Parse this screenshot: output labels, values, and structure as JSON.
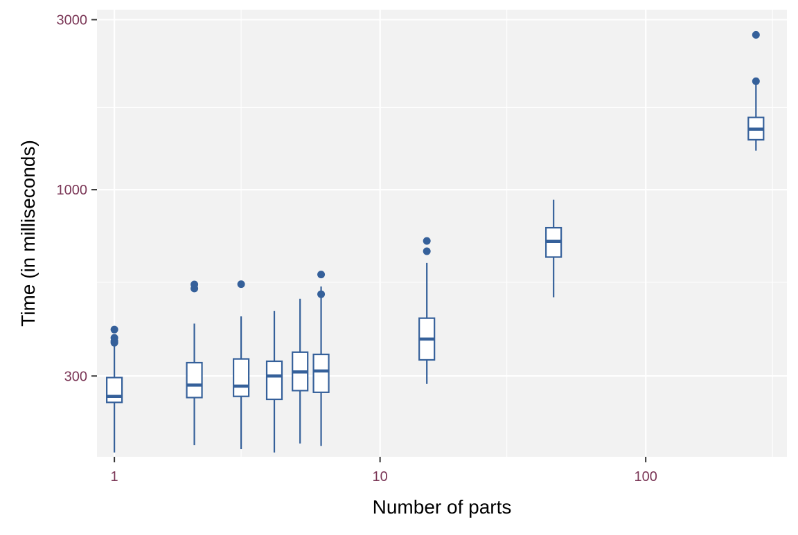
{
  "chart_data": {
    "type": "box",
    "xlabel": "Number of parts",
    "ylabel": "Time (in milliseconds)",
    "x_scale": "log10",
    "y_scale": "log10",
    "xlim": [
      0.86,
      340
    ],
    "ylim": [
      178,
      3200
    ],
    "x_ticks": [
      {
        "value": 1,
        "label": "1"
      },
      {
        "value": 10,
        "label": "10"
      },
      {
        "value": 100,
        "label": "100"
      }
    ],
    "x_minor_ticks": [
      3,
      30,
      300
    ],
    "y_ticks": [
      {
        "value": 300,
        "label": "300"
      },
      {
        "value": 1000,
        "label": "1000"
      },
      {
        "value": 3000,
        "label": "3000"
      }
    ],
    "y_minor_ticks": [
      550,
      1700
    ],
    "grid": true,
    "colors": {
      "panel": "#f2f2f2",
      "grid": "#ffffff",
      "box": "#35609a",
      "tick_label": "#7a3555",
      "axis_title": "#000000"
    },
    "boxes": [
      {
        "x": 1,
        "min": 183,
        "q1": 253,
        "median": 263,
        "q3": 297,
        "max": 368,
        "outliers": [
          372,
          376,
          384,
          405
        ]
      },
      {
        "x": 2,
        "min": 192,
        "q1": 261,
        "median": 283,
        "q3": 327,
        "max": 421,
        "outliers": [
          528,
          542
        ]
      },
      {
        "x": 3,
        "min": 187,
        "q1": 263,
        "median": 281,
        "q3": 335,
        "max": 441,
        "outliers": [
          543
        ]
      },
      {
        "x": 4,
        "min": 183,
        "q1": 258,
        "median": 300,
        "q3": 330,
        "max": 457,
        "outliers": []
      },
      {
        "x": 5,
        "min": 194,
        "q1": 273,
        "median": 308,
        "q3": 350,
        "max": 494,
        "outliers": []
      },
      {
        "x": 6,
        "min": 191,
        "q1": 270,
        "median": 310,
        "q3": 345,
        "max": 535,
        "outliers": [
          509,
          578
        ]
      },
      {
        "x": 15,
        "min": 285,
        "q1": 333,
        "median": 381,
        "q3": 436,
        "max": 623,
        "outliers": [
          672,
          718
        ]
      },
      {
        "x": 45,
        "min": 499,
        "q1": 647,
        "median": 716,
        "q3": 782,
        "max": 937,
        "outliers": []
      },
      {
        "x": 260,
        "min": 1287,
        "q1": 1381,
        "median": 1479,
        "q3": 1595,
        "max": 2008,
        "outliers": [
          2015,
          2720
        ]
      }
    ]
  }
}
